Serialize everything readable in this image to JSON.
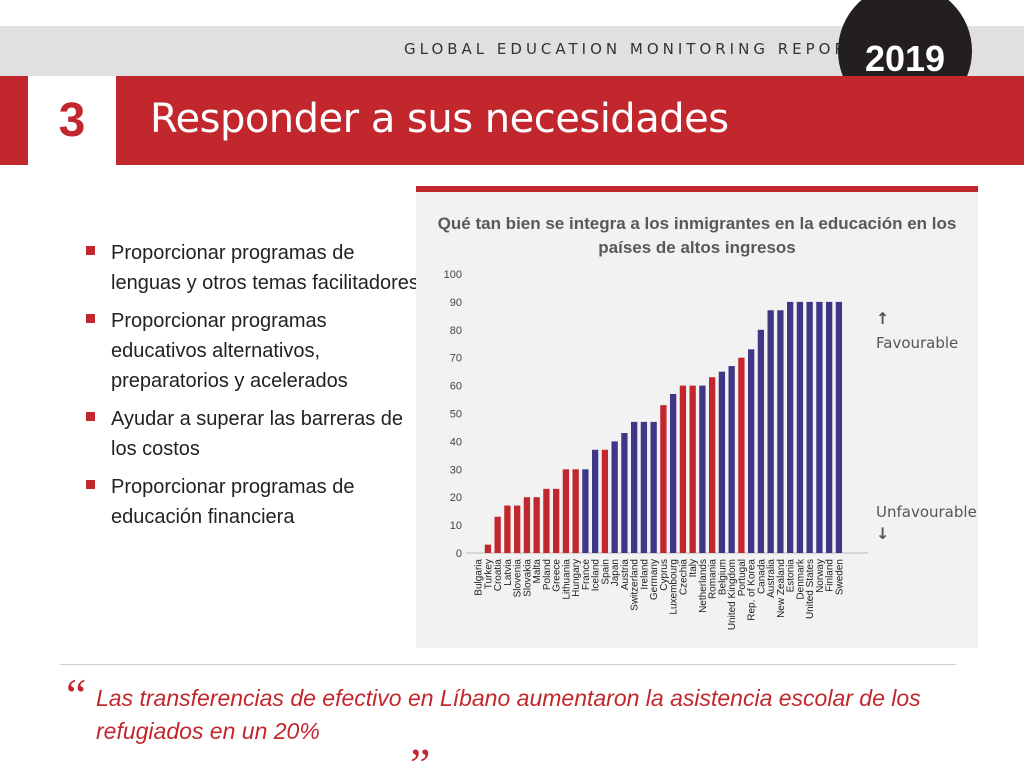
{
  "header": {
    "report_name": "GLOBAL EDUCATION MONITORING REPORT",
    "year": "2019",
    "chapter_number": "3",
    "title": "Responder a sus necesidades"
  },
  "bullets": [
    "Proporcionar programas de lenguas y otros temas facilitadores",
    "Proporcionar programas educativos alternativos, preparatorios y acelerados",
    "Ayudar a superar las barreras de los costos",
    "Proporcionar programas de educación financiera"
  ],
  "quote": {
    "text": "Las transferencias de efectivo en Líbano aumentaron la asistencia escolar de los refugiados en un 20%",
    "open_mark": "“",
    "close_mark": "„"
  },
  "colors": {
    "accent": "#c1272d",
    "bar_red": "#c1272d",
    "bar_purple": "#3f3785",
    "dark": "#231f20"
  },
  "chart_data": {
    "type": "bar",
    "title": "Qué tan bien se integra a los inmigrantes  en la educación en los países de altos ingresos",
    "ylim": [
      0,
      100
    ],
    "yticks": [
      0,
      10,
      20,
      30,
      40,
      50,
      60,
      70,
      80,
      90,
      100
    ],
    "annotations": {
      "up": "Favourable",
      "down": "Unfavourable"
    },
    "categories": [
      "Bulgaria",
      "Turkey",
      "Croatia",
      "Latvia",
      "Slovenia",
      "Slovakia",
      "Malta",
      "Poland",
      "Greece",
      "Lithuania",
      "Hungary",
      "France",
      "Iceland",
      "Spain",
      "Japan",
      "Austria",
      "Switzerland",
      "Ireland",
      "Germany",
      "Cyprus",
      "Luxembourg",
      "Czechia",
      "Italy",
      "Netherlands",
      "Romania",
      "Belgium",
      "United Kingdom",
      "Portugal",
      "Rep. of Korea",
      "Canada",
      "Australia",
      "New Zealand",
      "Estonia",
      "Denmark",
      "United States",
      "Norway",
      "Finland",
      "Sweden"
    ],
    "values": [
      0,
      3,
      13,
      17,
      17,
      20,
      20,
      23,
      23,
      30,
      30,
      30,
      37,
      37,
      40,
      43,
      47,
      47,
      47,
      53,
      57,
      60,
      60,
      60,
      63,
      65,
      67,
      70,
      73,
      80,
      87,
      87,
      90,
      90,
      90,
      90,
      90,
      90
    ],
    "colors": [
      "red",
      "red",
      "red",
      "red",
      "red",
      "red",
      "red",
      "red",
      "red",
      "red",
      "red",
      "purple",
      "purple",
      "red",
      "purple",
      "purple",
      "purple",
      "purple",
      "purple",
      "red",
      "purple",
      "red",
      "red",
      "purple",
      "red",
      "purple",
      "purple",
      "red",
      "purple",
      "purple",
      "purple",
      "purple",
      "purple",
      "purple",
      "purple",
      "purple",
      "purple",
      "purple"
    ]
  }
}
